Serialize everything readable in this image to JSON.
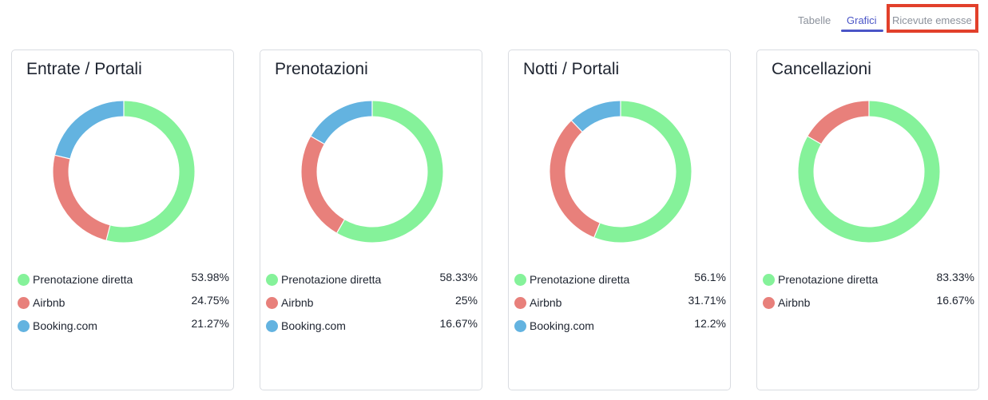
{
  "tabs": [
    {
      "label": "Tabelle",
      "active": false
    },
    {
      "label": "Grafici",
      "active": true
    },
    {
      "label": "Ricevute emesse",
      "active": false
    }
  ],
  "colors": {
    "accent": "#4a55c7",
    "highlight": "#e2402b",
    "Prenotazione diretta": "#85f29a",
    "Airbnb": "#e8807b",
    "Booking.com": "#63b3e0"
  },
  "chart_data": [
    {
      "type": "pie",
      "title": "Entrate / Portali",
      "series": [
        {
          "name": "Prenotazione diretta",
          "value": 53.98,
          "label": "53.98%"
        },
        {
          "name": "Airbnb",
          "value": 24.75,
          "label": "24.75%"
        },
        {
          "name": "Booking.com",
          "value": 21.27,
          "label": "21.27%"
        }
      ]
    },
    {
      "type": "pie",
      "title": "Prenotazioni",
      "series": [
        {
          "name": "Prenotazione diretta",
          "value": 58.33,
          "label": "58.33%"
        },
        {
          "name": "Airbnb",
          "value": 25,
          "label": "25%"
        },
        {
          "name": "Booking.com",
          "value": 16.67,
          "label": "16.67%"
        }
      ]
    },
    {
      "type": "pie",
      "title": "Notti / Portali",
      "series": [
        {
          "name": "Prenotazione diretta",
          "value": 56.1,
          "label": "56.1%"
        },
        {
          "name": "Airbnb",
          "value": 31.71,
          "label": "31.71%"
        },
        {
          "name": "Booking.com",
          "value": 12.2,
          "label": "12.2%"
        }
      ]
    },
    {
      "type": "pie",
      "title": "Cancellazioni",
      "series": [
        {
          "name": "Prenotazione diretta",
          "value": 83.33,
          "label": "83.33%"
        },
        {
          "name": "Airbnb",
          "value": 16.67,
          "label": "16.67%"
        }
      ]
    }
  ]
}
